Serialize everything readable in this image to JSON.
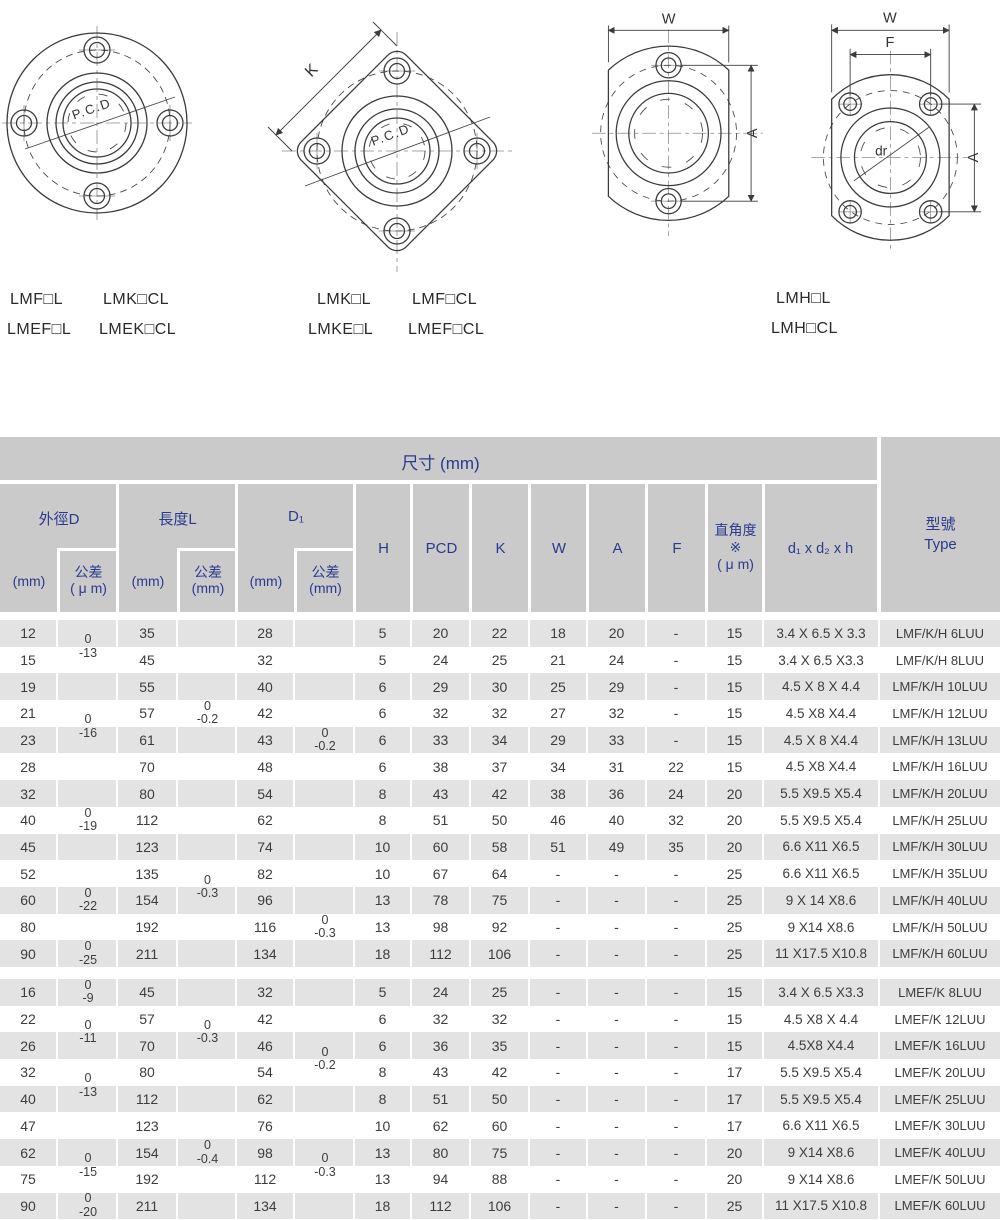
{
  "colors": {
    "header_bg": "#cacaca",
    "row_alt_bg": "#e3e3e3",
    "header_text": "#2b3a8e",
    "body_text": "#3d3d3d",
    "drawing_line": "#3b3b3b"
  },
  "drawings": {
    "round": {
      "pcd": "P.C.D",
      "models": [
        "LMF□L",
        "LMK□CL",
        "LMEF□L",
        "LMEK□CL"
      ]
    },
    "square": {
      "pcd": "P.C.D",
      "k": "K",
      "models": [
        "LMK□L",
        "LMF□CL",
        "LMKE□L",
        "LMEF□CL"
      ]
    },
    "oval": {
      "w": "W",
      "a": "A",
      "f": "F",
      "dr": "dr",
      "models": [
        "LMH□L",
        "LMH□CL"
      ]
    }
  },
  "table": {
    "title": "尺寸 (mm)",
    "header": {
      "d_group": "外徑D",
      "l_group": "長度L",
      "d1_group": "D₁",
      "mm": "(mm)",
      "tol": "公差",
      "um": "( μ m)",
      "tol_mm": "(mm)",
      "h": "H",
      "pcd": "PCD",
      "k": "K",
      "w": "W",
      "a": "A",
      "f": "F",
      "perp1": "直角度",
      "perp2": "※",
      "perp3": "( μ m)",
      "screws": "d₁ x d₂ x h",
      "type1": "型號",
      "type2": "Type"
    },
    "groups": [
      {
        "rows": [
          [
            "12",
            "35",
            "28",
            "5",
            "20",
            "22",
            "18",
            "20",
            "-",
            "15",
            "3.4 X 6.5 X 3.3",
            "LMF/K/H 6LUU"
          ],
          [
            "15",
            "45",
            "32",
            "5",
            "24",
            "25",
            "21",
            "24",
            "-",
            "15",
            "3.4 X 6.5 X3.3",
            "LMF/K/H 8LUU"
          ],
          [
            "19",
            "55",
            "40",
            "6",
            "29",
            "30",
            "25",
            "29",
            "-",
            "15",
            "4.5 X 8 X 4.4",
            "LMF/K/H 10LUU"
          ],
          [
            "21",
            "57",
            "42",
            "6",
            "32",
            "32",
            "27",
            "32",
            "-",
            "15",
            "4.5 X8 X4.4",
            "LMF/K/H 12LUU"
          ],
          [
            "23",
            "61",
            "43",
            "6",
            "33",
            "34",
            "29",
            "33",
            "-",
            "15",
            "4.5 X 8 X4.4",
            "LMF/K/H 13LUU"
          ],
          [
            "28",
            "70",
            "48",
            "6",
            "38",
            "37",
            "34",
            "31",
            "22",
            "15",
            "4.5 X8 X4.4",
            "LMF/K/H 16LUU"
          ],
          [
            "32",
            "80",
            "54",
            "8",
            "43",
            "42",
            "38",
            "36",
            "24",
            "20",
            "5.5 X9.5 X5.4",
            "LMF/K/H 20LUU"
          ],
          [
            "40",
            "112",
            "62",
            "8",
            "51",
            "50",
            "46",
            "40",
            "32",
            "20",
            "5.5 X9.5 X5.4",
            "LMF/K/H 25LUU"
          ],
          [
            "45",
            "123",
            "74",
            "10",
            "60",
            "58",
            "51",
            "49",
            "35",
            "20",
            "6.6 X11 X6.5",
            "LMF/K/H 30LUU"
          ],
          [
            "52",
            "135",
            "82",
            "10",
            "67",
            "64",
            "-",
            "-",
            "-",
            "25",
            "6.6 X11 X6.5",
            "LMF/K/H 35LUU"
          ],
          [
            "60",
            "154",
            "96",
            "13",
            "78",
            "75",
            "-",
            "-",
            "-",
            "25",
            "9 X 14 X8.6",
            "LMF/K/H 40LUU"
          ],
          [
            "80",
            "192",
            "116",
            "13",
            "98",
            "92",
            "-",
            "-",
            "-",
            "25",
            "9 X14 X8.6",
            "LMF/K/H 50LUU"
          ],
          [
            "90",
            "211",
            "134",
            "18",
            "112",
            "106",
            "-",
            "-",
            "-",
            "25",
            "11 X17.5 X10.8",
            "LMF/K/H 60LUU"
          ]
        ]
      },
      {
        "rows": [
          [
            "16",
            "45",
            "32",
            "5",
            "24",
            "25",
            "-",
            "-",
            "-",
            "15",
            "3.4 X 6.5 X3.3",
            "LMEF/K 8LUU"
          ],
          [
            "22",
            "57",
            "42",
            "6",
            "32",
            "32",
            "-",
            "-",
            "-",
            "15",
            "4.5 X8 X 4.4",
            "LMEF/K 12LUU"
          ],
          [
            "26",
            "70",
            "46",
            "6",
            "36",
            "35",
            "-",
            "-",
            "-",
            "15",
            "4.5X8 X4.4",
            "LMEF/K 16LUU"
          ],
          [
            "32",
            "80",
            "54",
            "8",
            "43",
            "42",
            "-",
            "-",
            "-",
            "17",
            "5.5 X9.5 X5.4",
            "LMEF/K 20LUU"
          ],
          [
            "40",
            "112",
            "62",
            "8",
            "51",
            "50",
            "-",
            "-",
            "-",
            "17",
            "5.5 X9.5 X5.4",
            "LMEF/K 25LUU"
          ],
          [
            "47",
            "123",
            "76",
            "10",
            "62",
            "60",
            "-",
            "-",
            "-",
            "17",
            "6.6 X11 X6.5",
            "LMEF/K 30LUU"
          ],
          [
            "62",
            "154",
            "98",
            "13",
            "80",
            "75",
            "-",
            "-",
            "-",
            "20",
            "9 X14 X8.6",
            "LMEF/K 40LUU"
          ],
          [
            "75",
            "192",
            "112",
            "13",
            "94",
            "88",
            "-",
            "-",
            "-",
            "20",
            "9 X14 X8.6",
            "LMEF/K 50LUU"
          ],
          [
            "90",
            "211",
            "134",
            "18",
            "112",
            "106",
            "-",
            "-",
            "-",
            "25",
            "11 X17.5 X10.8",
            "LMEF/K 60LUU"
          ]
        ]
      }
    ],
    "tolerances": [
      {
        "group": 0,
        "col": 0,
        "rows": [
          1,
          2
        ],
        "lines": [
          "0",
          "-13"
        ]
      },
      {
        "group": 0,
        "col": 0,
        "rows": [
          3,
          6
        ],
        "lines": [
          "0",
          "-16"
        ]
      },
      {
        "group": 0,
        "col": 0,
        "rows": [
          8,
          8
        ],
        "lines": [
          "0",
          "-19"
        ]
      },
      {
        "group": 0,
        "col": 0,
        "rows": [
          11,
          11
        ],
        "lines": [
          "0",
          "-22"
        ]
      },
      {
        "group": 0,
        "col": 0,
        "rows": [
          13,
          13
        ],
        "lines": [
          "0",
          "-25"
        ]
      },
      {
        "group": 0,
        "col": 1,
        "rows": [
          1,
          7
        ],
        "lines": [
          "0",
          "-0.2"
        ]
      },
      {
        "group": 0,
        "col": 1,
        "rows": [
          8,
          13
        ],
        "lines": [
          "0",
          "-0.3"
        ]
      },
      {
        "group": 0,
        "col": 2,
        "rows": [
          3,
          7
        ],
        "lines": [
          "0",
          "-0.2"
        ]
      },
      {
        "group": 0,
        "col": 2,
        "rows": [
          11,
          13
        ],
        "lines": [
          "0",
          "-0.3"
        ]
      },
      {
        "group": 1,
        "col": 0,
        "rows": [
          1,
          1
        ],
        "lines": [
          "0",
          "-9"
        ]
      },
      {
        "group": 1,
        "col": 0,
        "rows": [
          2,
          3
        ],
        "lines": [
          "0",
          "-11"
        ]
      },
      {
        "group": 1,
        "col": 0,
        "rows": [
          4,
          5
        ],
        "lines": [
          "0",
          "-13"
        ]
      },
      {
        "group": 1,
        "col": 0,
        "rows": [
          7,
          8
        ],
        "lines": [
          "0",
          "-15"
        ]
      },
      {
        "group": 1,
        "col": 0,
        "rows": [
          9,
          9
        ],
        "lines": [
          "0",
          "-20"
        ]
      },
      {
        "group": 1,
        "col": 1,
        "rows": [
          2,
          3
        ],
        "lines": [
          "0",
          "-0.3"
        ]
      },
      {
        "group": 1,
        "col": 1,
        "rows": [
          7,
          7
        ],
        "lines": [
          "0",
          "-0.4"
        ]
      },
      {
        "group": 1,
        "col": 2,
        "rows": [
          3,
          4
        ],
        "lines": [
          "0",
          "-0.2"
        ]
      },
      {
        "group": 1,
        "col": 2,
        "rows": [
          7,
          8
        ],
        "lines": [
          "0",
          "-0.3"
        ]
      }
    ]
  }
}
